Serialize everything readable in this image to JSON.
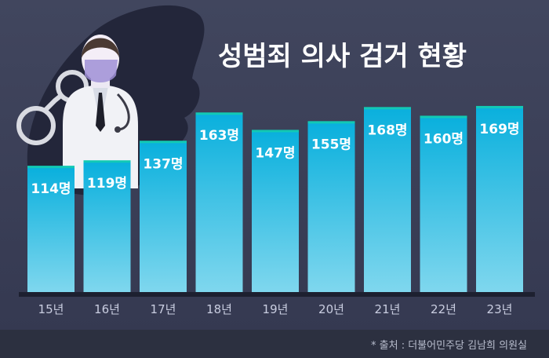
{
  "title": "성범죄 의사 검거 현황",
  "source": "* 출처 : 더불어민주당 김남희 의원실",
  "colors": {
    "background": "#3a3f55",
    "bar_top": "#0ab0dd",
    "bar_bottom": "#7fd7ee",
    "bar_cap": "#12c9b5",
    "label": "#ffffff",
    "tick": "#c9cde0",
    "footer": "#2c3040"
  },
  "illustration": {
    "subject": "doctor-with-handcuffs",
    "icons": [
      "doctor-icon",
      "handcuffs-icon",
      "shadow-silhouette"
    ]
  },
  "chart_data": {
    "type": "bar",
    "title": "성범죄 의사 검거 현황",
    "categories": [
      "15년",
      "16년",
      "17년",
      "18년",
      "19년",
      "20년",
      "21년",
      "22년",
      "23년"
    ],
    "values": [
      114,
      119,
      137,
      163,
      147,
      155,
      168,
      160,
      169
    ],
    "data_labels": [
      "114명",
      "119명",
      "137명",
      "163명",
      "147명",
      "155명",
      "168명",
      "160명",
      "169명"
    ],
    "unit": "명",
    "xlabel": "",
    "ylabel": "",
    "grid": false,
    "legend": "none"
  }
}
